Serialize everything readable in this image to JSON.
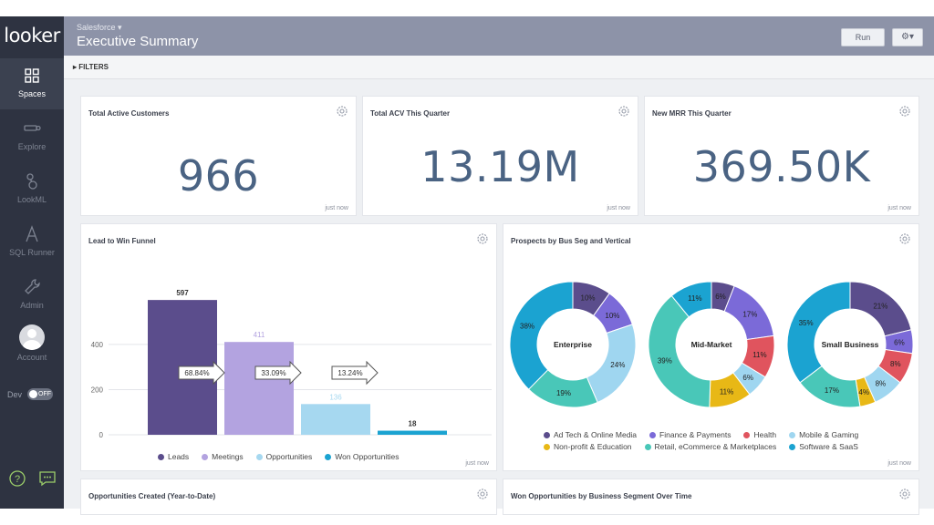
{
  "app": {
    "logo": "looker"
  },
  "sidebar": {
    "items": [
      {
        "label": "Spaces"
      },
      {
        "label": "Explore"
      },
      {
        "label": "LookML"
      },
      {
        "label": "SQL Runner"
      },
      {
        "label": "Admin"
      },
      {
        "label": "Account"
      }
    ],
    "dev_label": "Dev",
    "dev_toggle": "OFF"
  },
  "header": {
    "breadcrumb": "Salesforce ▾",
    "title": "Executive Summary",
    "run_label": "Run",
    "gear_label": "⚙▾"
  },
  "filters": {
    "label": "▸ FILTERS"
  },
  "tiles": {
    "customers": {
      "title": "Total Active Customers",
      "value": "966",
      "updated": "just now"
    },
    "acv": {
      "title": "Total ACV This Quarter",
      "value": "13.19M",
      "updated": "just now"
    },
    "mrr": {
      "title": "New MRR This Quarter",
      "value": "369.50K",
      "updated": "just now"
    },
    "funnel": {
      "title": "Lead to Win Funnel",
      "updated": "just now"
    },
    "prospects": {
      "title": "Prospects by Bus Seg and Vertical",
      "updated": "just now"
    },
    "opps": {
      "title": "Opportunities Created (Year-to-Date)"
    },
    "won": {
      "title": "Won Opportunities by Business Segment Over Time"
    }
  },
  "colors": {
    "leads": "#5b4d8c",
    "meetings": "#b3a3e0",
    "opportunities": "#a6d8f0",
    "won": "#1ba3d1",
    "ad_tech": "#5b4d8c",
    "finance": "#7b6ad8",
    "health": "#e0545e",
    "mobile": "#9fd6f0",
    "nonprofit": "#e8b816",
    "retail": "#49c7b8",
    "software": "#1ba3d1"
  },
  "chart_data": [
    {
      "type": "bar",
      "title": "Lead to Win Funnel",
      "categories": [
        "Leads",
        "Meetings",
        "Opportunities",
        "Won Opportunities"
      ],
      "values": [
        597,
        411,
        136,
        18
      ],
      "yticks": [
        0,
        200,
        400
      ],
      "ylim": [
        0,
        650
      ],
      "conversion_labels": [
        "68.84%",
        "33.09%",
        "13.24%"
      ],
      "legend": [
        "Leads",
        "Meetings",
        "Opportunities",
        "Won Opportunities"
      ],
      "legend_placement": "bottom"
    },
    {
      "type": "pie",
      "title": "Prospects by Bus Seg and Vertical",
      "legend_placement": "bottom",
      "legend": [
        "Ad Tech & Online Media",
        "Finance & Payments",
        "Health",
        "Mobile & Gaming",
        "Non-profit & Education",
        "Retail, eCommerce & Marketplaces",
        "Software & SaaS"
      ],
      "donuts": [
        {
          "name": "Enterprise",
          "slices": [
            {
              "category": "Ad Tech & Online Media",
              "value": 10,
              "label": "10%"
            },
            {
              "category": "Finance & Payments",
              "value": 10,
              "label": "10%"
            },
            {
              "category": "Mobile & Gaming",
              "value": 24,
              "label": "24%"
            },
            {
              "category": "Retail, eCommerce & Marketplaces",
              "value": 19,
              "label": "19%"
            },
            {
              "category": "Software & SaaS",
              "value": 38,
              "label": "38%"
            }
          ]
        },
        {
          "name": "Mid-Market",
          "slices": [
            {
              "category": "Ad Tech & Online Media",
              "value": 6,
              "label": "6%"
            },
            {
              "category": "Finance & Payments",
              "value": 17,
              "label": "17%"
            },
            {
              "category": "Health",
              "value": 11,
              "label": "11%"
            },
            {
              "category": "Mobile & Gaming",
              "value": 6,
              "label": "6%"
            },
            {
              "category": "Non-profit & Education",
              "value": 11,
              "label": "11%"
            },
            {
              "category": "Retail, eCommerce & Marketplaces",
              "value": 39,
              "label": "39%"
            },
            {
              "category": "Software & SaaS",
              "value": 11,
              "label": "11%"
            }
          ]
        },
        {
          "name": "Small Business",
          "slices": [
            {
              "category": "Ad Tech & Online Media",
              "value": 21,
              "label": "21%"
            },
            {
              "category": "Finance & Payments",
              "value": 6,
              "label": "6%"
            },
            {
              "category": "Health",
              "value": 8,
              "label": "8%"
            },
            {
              "category": "Mobile & Gaming",
              "value": 8,
              "label": "8%"
            },
            {
              "category": "Non-profit & Education",
              "value": 4,
              "label": "4%"
            },
            {
              "category": "Retail, eCommerce & Marketplaces",
              "value": 17,
              "label": "17%"
            },
            {
              "category": "Software & SaaS",
              "value": 35,
              "label": "35%"
            }
          ]
        }
      ]
    }
  ]
}
